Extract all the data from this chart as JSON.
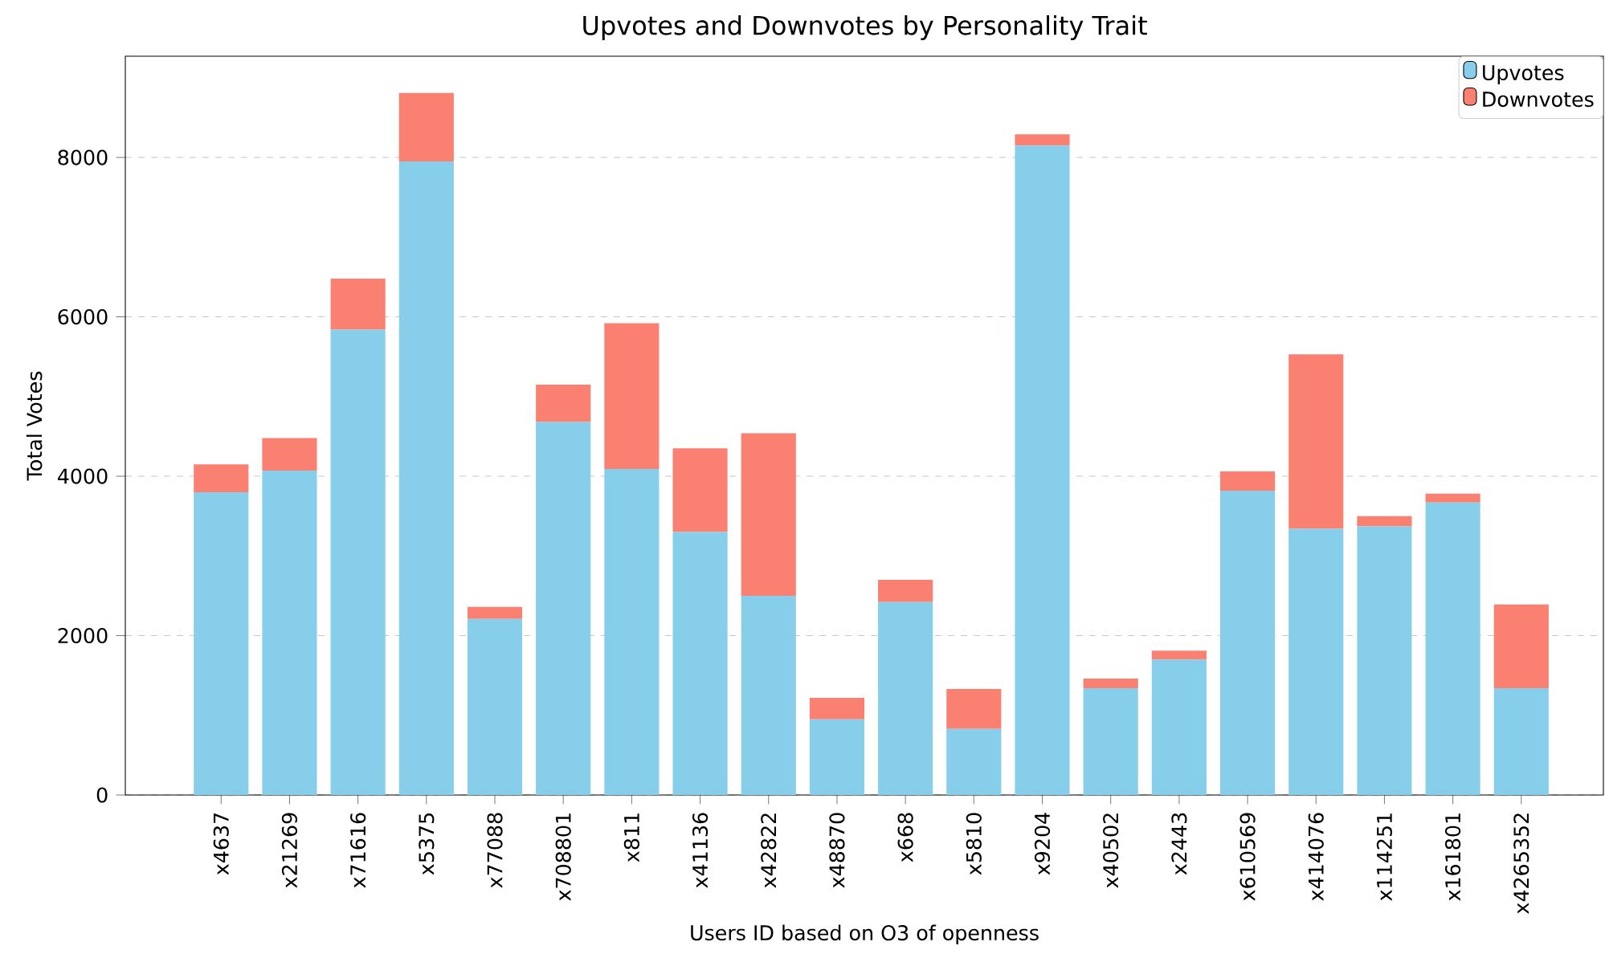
{
  "chart_data": {
    "type": "bar",
    "stacked": true,
    "title": "Upvotes and Downvotes by Personality Trait",
    "xlabel": "Users ID based on O3 of openness",
    "ylabel": "Total Votes",
    "categories": [
      "x4637",
      "x21269",
      "x71616",
      "x5375",
      "x77088",
      "x708801",
      "x811",
      "x41136",
      "x42822",
      "x48870",
      "x668",
      "x5810",
      "x9204",
      "x40502",
      "x2443",
      "x610569",
      "x414076",
      "x114251",
      "x161801",
      "x4265352"
    ],
    "series": [
      {
        "name": "Upvotes",
        "color": "#87ceeb",
        "values": [
          3800,
          4070,
          5840,
          7950,
          2210,
          4680,
          4090,
          3300,
          2500,
          950,
          2420,
          830,
          8150,
          1340,
          1700,
          3820,
          3340,
          3370,
          3670,
          1340
        ]
      },
      {
        "name": "Downvotes",
        "color": "#fa8072",
        "values": [
          350,
          410,
          640,
          860,
          150,
          470,
          1830,
          1050,
          2040,
          270,
          280,
          500,
          140,
          120,
          110,
          240,
          2190,
          130,
          110,
          1050
        ]
      }
    ],
    "ylim": [
      0,
      9270
    ],
    "yticks": [
      0,
      2000,
      4000,
      6000,
      8000
    ],
    "grid": "y",
    "legend": "top right"
  }
}
